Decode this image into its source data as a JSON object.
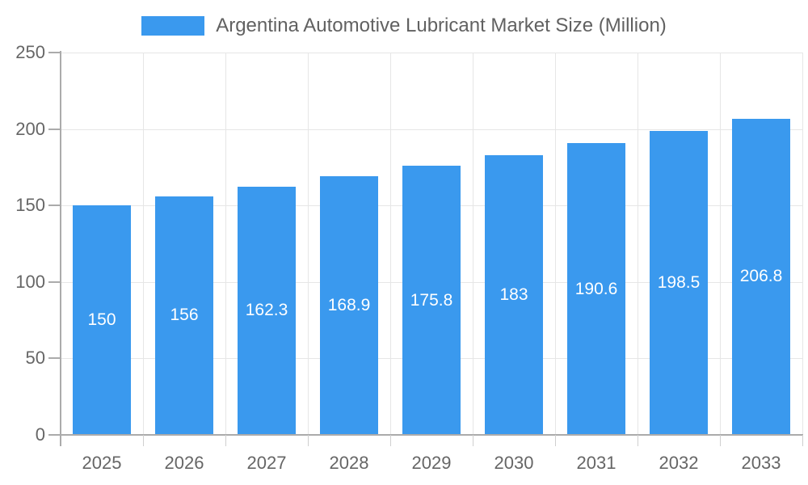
{
  "legend": {
    "label": "Argentina Automotive Lubricant Market Size (Million)"
  },
  "chart_data": {
    "type": "bar",
    "title": "Argentina Automotive Lubricant Market Size (Million)",
    "xlabel": "",
    "ylabel": "",
    "categories": [
      "2025",
      "2026",
      "2027",
      "2028",
      "2029",
      "2030",
      "2031",
      "2032",
      "2033"
    ],
    "values": [
      150,
      156,
      162.3,
      168.9,
      175.8,
      183,
      190.6,
      198.5,
      206.8
    ],
    "value_labels": [
      "150",
      "156",
      "162.3",
      "168.9",
      "175.8",
      "183",
      "190.6",
      "198.5",
      "206.8"
    ],
    "ylim": [
      0,
      250
    ],
    "yticks": [
      0,
      50,
      100,
      150,
      200,
      250
    ],
    "grid": true,
    "legend_position": "top-center",
    "colors": {
      "bar": "#3A99EE",
      "grid": "#E6E6E6",
      "axis": "#ABABAB",
      "boundary_tick": "#CFCFCF",
      "axis_label": "#666666",
      "title": "#616161",
      "value_label": "#FFFFFF",
      "background": "#FFFFFF"
    }
  }
}
